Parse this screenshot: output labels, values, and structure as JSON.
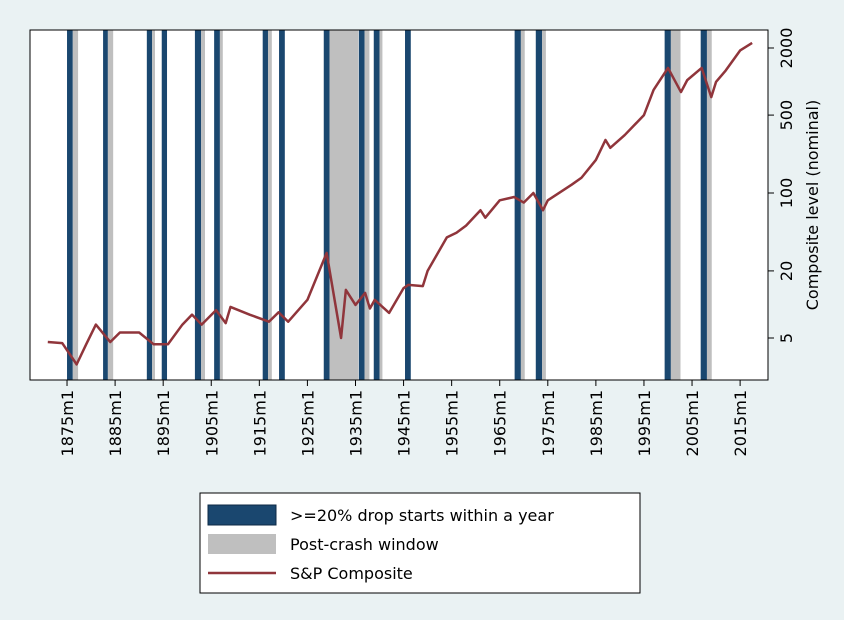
{
  "chart_data": {
    "type": "line",
    "y_label": "Composite level (nominal)",
    "ylog": true,
    "yaxis_side": "right",
    "grid": false,
    "xlim": [
      1867.3,
      2020.8
    ],
    "ylim": [
      2.1,
      2900
    ],
    "xticks": [
      {
        "value": 1875,
        "label": "1875m1"
      },
      {
        "value": 1885,
        "label": "1885m1"
      },
      {
        "value": 1895,
        "label": "1895m1"
      },
      {
        "value": 1905,
        "label": "1905m1"
      },
      {
        "value": 1915,
        "label": "1915m1"
      },
      {
        "value": 1925,
        "label": "1925m1"
      },
      {
        "value": 1935,
        "label": "1935m1"
      },
      {
        "value": 1945,
        "label": "1945m1"
      },
      {
        "value": 1955,
        "label": "1955m1"
      },
      {
        "value": 1965,
        "label": "1965m1"
      },
      {
        "value": 1975,
        "label": "1975m1"
      },
      {
        "value": 1985,
        "label": "1985m1"
      },
      {
        "value": 1995,
        "label": "1995m1"
      },
      {
        "value": 2005,
        "label": "2005m1"
      },
      {
        "value": 2015,
        "label": "2015m1"
      }
    ],
    "yticks": [
      5,
      20,
      100,
      500,
      2000
    ],
    "bands": [
      {
        "name": ">=20% drop starts within a year",
        "color": "#1a476f",
        "ranges": [
          [
            1875.0,
            1876.2
          ],
          [
            1882.5,
            1883.5
          ],
          [
            1891.6,
            1892.7
          ],
          [
            1894.7,
            1895.8
          ],
          [
            1901.6,
            1902.9
          ],
          [
            1905.6,
            1906.8
          ],
          [
            1915.7,
            1916.8
          ],
          [
            1919.1,
            1920.3
          ],
          [
            1928.4,
            1929.6
          ],
          [
            1935.7,
            1936.9
          ],
          [
            1938.8,
            1940.0
          ],
          [
            1945.3,
            1946.5
          ],
          [
            1968.1,
            1969.4
          ],
          [
            1972.5,
            1973.8
          ],
          [
            1999.3,
            2000.6
          ],
          [
            2006.8,
            2008.1
          ]
        ]
      },
      {
        "name": "Post-crash window",
        "color": "#bfbfbf",
        "ranges": [
          [
            1876.2,
            1877.3
          ],
          [
            1883.5,
            1884.6
          ],
          [
            1892.7,
            1893.3
          ],
          [
            1902.9,
            1903.7
          ],
          [
            1906.8,
            1907.4
          ],
          [
            1916.8,
            1917.6
          ],
          [
            1929.6,
            1935.6
          ],
          [
            1936.9,
            1937.9
          ],
          [
            1940.0,
            1940.6
          ],
          [
            1969.4,
            1970.2
          ],
          [
            1973.8,
            1974.6
          ],
          [
            2000.6,
            2002.6
          ],
          [
            2008.1,
            2009.1
          ]
        ]
      }
    ],
    "series": [
      {
        "name": "S&P Composite",
        "color": "#90353b",
        "x": [
          1871,
          1874,
          1877,
          1879,
          1881,
          1884,
          1886,
          1890,
          1893,
          1896,
          1899,
          1901,
          1903,
          1906,
          1908,
          1909,
          1913,
          1917,
          1919,
          1921,
          1925,
          1929,
          1932,
          1933,
          1935,
          1937,
          1938,
          1939,
          1942,
          1945,
          1946,
          1949,
          1950,
          1954,
          1956,
          1958,
          1961,
          1962,
          1965,
          1968,
          1970,
          1972,
          1974,
          1975,
          1980,
          1982,
          1985,
          1987,
          1988,
          1991,
          1995,
          1997,
          2000,
          2002.7,
          2004,
          2007,
          2009,
          2010,
          2012,
          2015,
          2017.5
        ],
        "values": [
          4.6,
          4.5,
          2.9,
          4.4,
          6.6,
          4.6,
          5.6,
          5.6,
          4.4,
          4.4,
          6.6,
          8.1,
          6.6,
          8.9,
          6.8,
          9.5,
          8.1,
          7.0,
          8.5,
          7.0,
          11,
          29,
          5,
          13.5,
          9.9,
          12.7,
          9.2,
          11,
          8.4,
          14,
          15,
          14.6,
          20,
          40,
          44,
          51,
          70,
          60,
          86,
          92,
          82,
          100,
          70,
          86,
          119,
          137,
          198,
          299,
          254,
          331,
          500,
          840,
          1325,
          805,
          1030,
          1325,
          725,
          995,
          1255,
          1900,
          2220
        ]
      }
    ]
  }
}
